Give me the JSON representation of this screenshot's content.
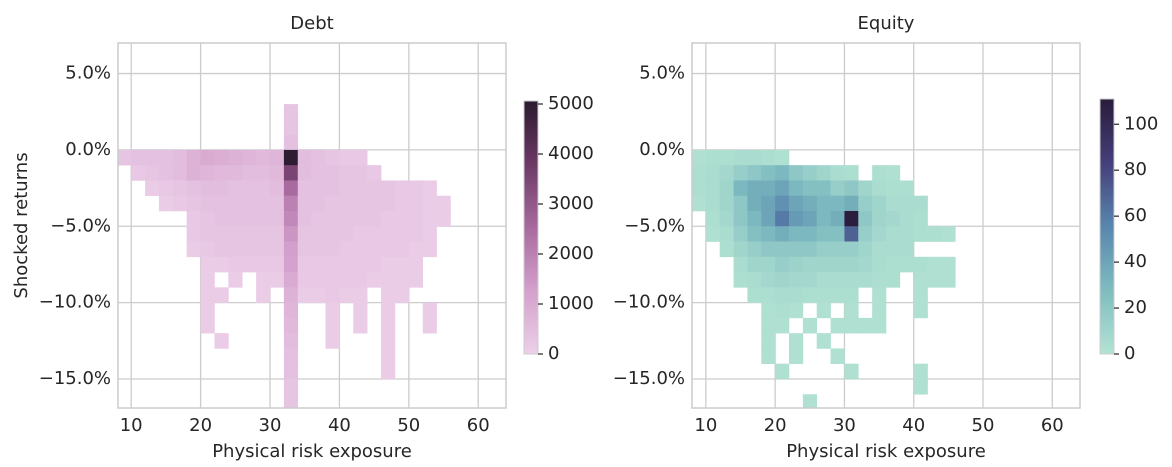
{
  "chart_data": [
    {
      "type": "histogram2d",
      "title": "Debt",
      "x_label": "Physical risk exposure",
      "y_label": "Shocked returns",
      "xbins": [
        8,
        10,
        12,
        14,
        16,
        18,
        20,
        22,
        24,
        26,
        28,
        30,
        32,
        34,
        36,
        38,
        40,
        42,
        44,
        46,
        48,
        50,
        52,
        54,
        56
      ],
      "ybins": [
        3,
        2,
        1,
        0,
        -1,
        -2,
        -3,
        -4,
        -5,
        -6,
        -7,
        -8,
        -9,
        -10,
        -11,
        -12,
        -13,
        -14,
        -15,
        -16,
        -17
      ],
      "values": [
        [
          null,
          null,
          null,
          null,
          null,
          null,
          null,
          null,
          null,
          null,
          null,
          null,
          300,
          null,
          null,
          null,
          null,
          null,
          null,
          null,
          null,
          null,
          null,
          null
        ],
        [
          null,
          null,
          null,
          null,
          null,
          null,
          null,
          null,
          null,
          null,
          null,
          null,
          300,
          null,
          null,
          null,
          null,
          null,
          null,
          null,
          null,
          null,
          null,
          null
        ],
        [
          null,
          null,
          null,
          null,
          null,
          null,
          null,
          null,
          null,
          null,
          null,
          null,
          400,
          null,
          null,
          null,
          null,
          null,
          null,
          null,
          null,
          null,
          null,
          null
        ],
        [
          300,
          400,
          400,
          400,
          500,
          800,
          1000,
          900,
          800,
          700,
          600,
          700,
          5000,
          500,
          400,
          300,
          200,
          200,
          null,
          null,
          null,
          null,
          null,
          null
        ],
        [
          null,
          200,
          300,
          400,
          500,
          800,
          700,
          600,
          600,
          500,
          500,
          600,
          3500,
          500,
          400,
          400,
          300,
          300,
          200,
          null,
          null,
          null,
          null,
          null
        ],
        [
          null,
          null,
          100,
          200,
          300,
          400,
          500,
          500,
          400,
          400,
          400,
          500,
          2500,
          400,
          400,
          400,
          300,
          300,
          300,
          300,
          200,
          200,
          100,
          null
        ],
        [
          null,
          null,
          null,
          100,
          200,
          300,
          400,
          400,
          400,
          400,
          400,
          400,
          2000,
          400,
          400,
          300,
          300,
          300,
          300,
          300,
          200,
          200,
          100,
          100
        ],
        [
          null,
          null,
          null,
          null,
          null,
          200,
          300,
          400,
          400,
          400,
          400,
          400,
          1800,
          400,
          300,
          300,
          300,
          300,
          300,
          200,
          200,
          200,
          100,
          100
        ],
        [
          null,
          null,
          null,
          null,
          null,
          200,
          300,
          300,
          300,
          300,
          300,
          300,
          1500,
          300,
          300,
          300,
          300,
          200,
          200,
          200,
          200,
          200,
          100,
          null
        ],
        [
          null,
          null,
          null,
          null,
          null,
          100,
          200,
          300,
          300,
          300,
          300,
          300,
          1300,
          300,
          300,
          300,
          200,
          200,
          200,
          200,
          200,
          100,
          100,
          null
        ],
        [
          null,
          null,
          null,
          null,
          null,
          null,
          100,
          100,
          200,
          200,
          200,
          200,
          1200,
          200,
          200,
          200,
          200,
          200,
          200,
          100,
          100,
          100,
          null,
          null
        ],
        [
          null,
          null,
          null,
          null,
          null,
          null,
          100,
          null,
          100,
          null,
          100,
          100,
          1000,
          200,
          200,
          200,
          200,
          200,
          100,
          100,
          100,
          100,
          null,
          null
        ],
        [
          null,
          null,
          null,
          null,
          null,
          null,
          100,
          100,
          null,
          null,
          100,
          null,
          800,
          100,
          100,
          200,
          100,
          100,
          null,
          100,
          100,
          null,
          null,
          null
        ],
        [
          null,
          null,
          null,
          null,
          null,
          null,
          100,
          null,
          null,
          null,
          null,
          null,
          700,
          null,
          null,
          100,
          null,
          100,
          null,
          100,
          null,
          null,
          100,
          null
        ],
        [
          null,
          null,
          null,
          null,
          null,
          null,
          100,
          null,
          null,
          null,
          null,
          null,
          600,
          null,
          null,
          100,
          null,
          100,
          null,
          100,
          null,
          null,
          100,
          null
        ],
        [
          null,
          null,
          null,
          null,
          null,
          null,
          null,
          100,
          null,
          null,
          null,
          null,
          500,
          null,
          null,
          100,
          null,
          null,
          null,
          100,
          null,
          null,
          null,
          null
        ],
        [
          null,
          null,
          null,
          null,
          null,
          null,
          null,
          null,
          null,
          null,
          null,
          null,
          400,
          null,
          null,
          null,
          null,
          null,
          null,
          100,
          null,
          null,
          null,
          null
        ],
        [
          null,
          null,
          null,
          null,
          null,
          null,
          null,
          null,
          null,
          null,
          null,
          null,
          400,
          null,
          null,
          null,
          null,
          null,
          null,
          100,
          null,
          null,
          null,
          null
        ],
        [
          null,
          null,
          null,
          null,
          null,
          null,
          null,
          null,
          null,
          null,
          null,
          null,
          300,
          null,
          null,
          null,
          null,
          null,
          null,
          null,
          null,
          null,
          null,
          null
        ],
        [
          null,
          null,
          null,
          null,
          null,
          null,
          null,
          null,
          null,
          null,
          null,
          null,
          300,
          null,
          null,
          null,
          null,
          null,
          null,
          null,
          null,
          null,
          null,
          null
        ]
      ],
      "xlim": [
        8.1,
        64
      ],
      "ylim": [
        -16.9,
        7
      ],
      "xticks": [
        10,
        20,
        30,
        40,
        50,
        60
      ],
      "yticks": [
        {
          "value": -15,
          "label": "−15.0%"
        },
        {
          "value": -10,
          "label": "−10.0%"
        },
        {
          "value": -5,
          "label": "−5.0%"
        },
        {
          "value": 0,
          "label": "0.0%"
        },
        {
          "value": 5,
          "label": "5.0%"
        }
      ],
      "clim": [
        0,
        5060
      ],
      "cticks": [
        0,
        1000,
        2000,
        3000,
        4000,
        5000
      ],
      "cmap": [
        "#ecd0e9",
        "#d4a0cc",
        "#a86a9e",
        "#6d3a66",
        "#2b1a30"
      ],
      "grid": true
    },
    {
      "type": "histogram2d",
      "title": "Equity",
      "x_label": "Physical risk exposure",
      "xbins": [
        8,
        10,
        12,
        14,
        16,
        18,
        20,
        22,
        24,
        26,
        28,
        30,
        32,
        34,
        36,
        38,
        40,
        42,
        44,
        46,
        48
      ],
      "ybins": [
        0,
        -1,
        -2,
        -3,
        -4,
        -5,
        -6,
        -7,
        -8,
        -9,
        -10,
        -11,
        -12,
        -13,
        -14,
        -15,
        -16,
        -17
      ],
      "values": [
        [
          2,
          3,
          3,
          5,
          5,
          3,
          2,
          null,
          null,
          null,
          null,
          null,
          null,
          null,
          null,
          null,
          null,
          null,
          null,
          null
        ],
        [
          3,
          5,
          8,
          15,
          20,
          25,
          30,
          20,
          15,
          10,
          5,
          3,
          null,
          3,
          2,
          null,
          null,
          null,
          null,
          null
        ],
        [
          3,
          5,
          10,
          30,
          35,
          35,
          40,
          30,
          25,
          25,
          15,
          20,
          10,
          5,
          3,
          3,
          null,
          null,
          null,
          null
        ],
        [
          2,
          5,
          10,
          20,
          35,
          40,
          50,
          40,
          35,
          30,
          30,
          35,
          15,
          10,
          5,
          5,
          5,
          null,
          null,
          null
        ],
        [
          null,
          3,
          8,
          20,
          30,
          40,
          60,
          45,
          40,
          30,
          35,
          110,
          20,
          10,
          8,
          5,
          3,
          null,
          null,
          null
        ],
        [
          null,
          2,
          5,
          15,
          25,
          30,
          35,
          30,
          30,
          25,
          25,
          70,
          15,
          8,
          5,
          5,
          3,
          3,
          2,
          null
        ],
        [
          null,
          null,
          3,
          10,
          15,
          20,
          20,
          20,
          20,
          15,
          15,
          15,
          10,
          5,
          5,
          5,
          null,
          null,
          null,
          null
        ],
        [
          null,
          null,
          null,
          5,
          10,
          10,
          15,
          12,
          10,
          10,
          10,
          10,
          8,
          5,
          3,
          3,
          3,
          2,
          2,
          null
        ],
        [
          null,
          null,
          null,
          3,
          5,
          8,
          10,
          8,
          8,
          5,
          5,
          5,
          5,
          3,
          3,
          null,
          2,
          2,
          2,
          null
        ],
        [
          null,
          null,
          null,
          null,
          3,
          3,
          5,
          5,
          3,
          3,
          3,
          3,
          null,
          2,
          null,
          null,
          2,
          null,
          null,
          null
        ],
        [
          null,
          null,
          null,
          null,
          null,
          2,
          3,
          2,
          null,
          2,
          null,
          2,
          null,
          2,
          null,
          null,
          2,
          null,
          null,
          null
        ],
        [
          null,
          null,
          null,
          null,
          null,
          2,
          2,
          null,
          2,
          null,
          2,
          2,
          2,
          2,
          null,
          null,
          null,
          null,
          null,
          null
        ],
        [
          null,
          null,
          null,
          null,
          null,
          2,
          null,
          2,
          null,
          2,
          null,
          null,
          null,
          null,
          null,
          null,
          null,
          null,
          null,
          null
        ],
        [
          null,
          null,
          null,
          null,
          null,
          2,
          null,
          2,
          null,
          null,
          2,
          null,
          null,
          null,
          null,
          null,
          null,
          null,
          null,
          null
        ],
        [
          null,
          null,
          null,
          null,
          null,
          null,
          2,
          null,
          null,
          null,
          null,
          2,
          null,
          null,
          null,
          null,
          2,
          null,
          null,
          null
        ],
        [
          null,
          null,
          null,
          null,
          null,
          null,
          null,
          null,
          null,
          null,
          null,
          null,
          null,
          null,
          null,
          null,
          2,
          null,
          null,
          null
        ],
        [
          null,
          null,
          null,
          null,
          null,
          null,
          null,
          null,
          2,
          null,
          null,
          null,
          null,
          null,
          null,
          null,
          null,
          null,
          null,
          null
        ]
      ],
      "xlim": [
        8,
        64
      ],
      "ylim": [
        -16.9,
        7
      ],
      "xticks": [
        10,
        20,
        30,
        40,
        50,
        60
      ],
      "yticks": [
        {
          "value": -15,
          "label": "−15.0%"
        },
        {
          "value": -10,
          "label": "−10.0%"
        },
        {
          "value": -5,
          "label": "−5.0%"
        },
        {
          "value": 0,
          "label": "0.0%"
        },
        {
          "value": 5,
          "label": "5.0%"
        }
      ],
      "clim": [
        0,
        111
      ],
      "cticks": [
        0,
        20,
        40,
        60,
        80,
        100
      ],
      "cmap": [
        "#b3e3d3",
        "#7fbcc0",
        "#5886ae",
        "#453f7a",
        "#2a1c3c"
      ],
      "grid": true
    }
  ]
}
